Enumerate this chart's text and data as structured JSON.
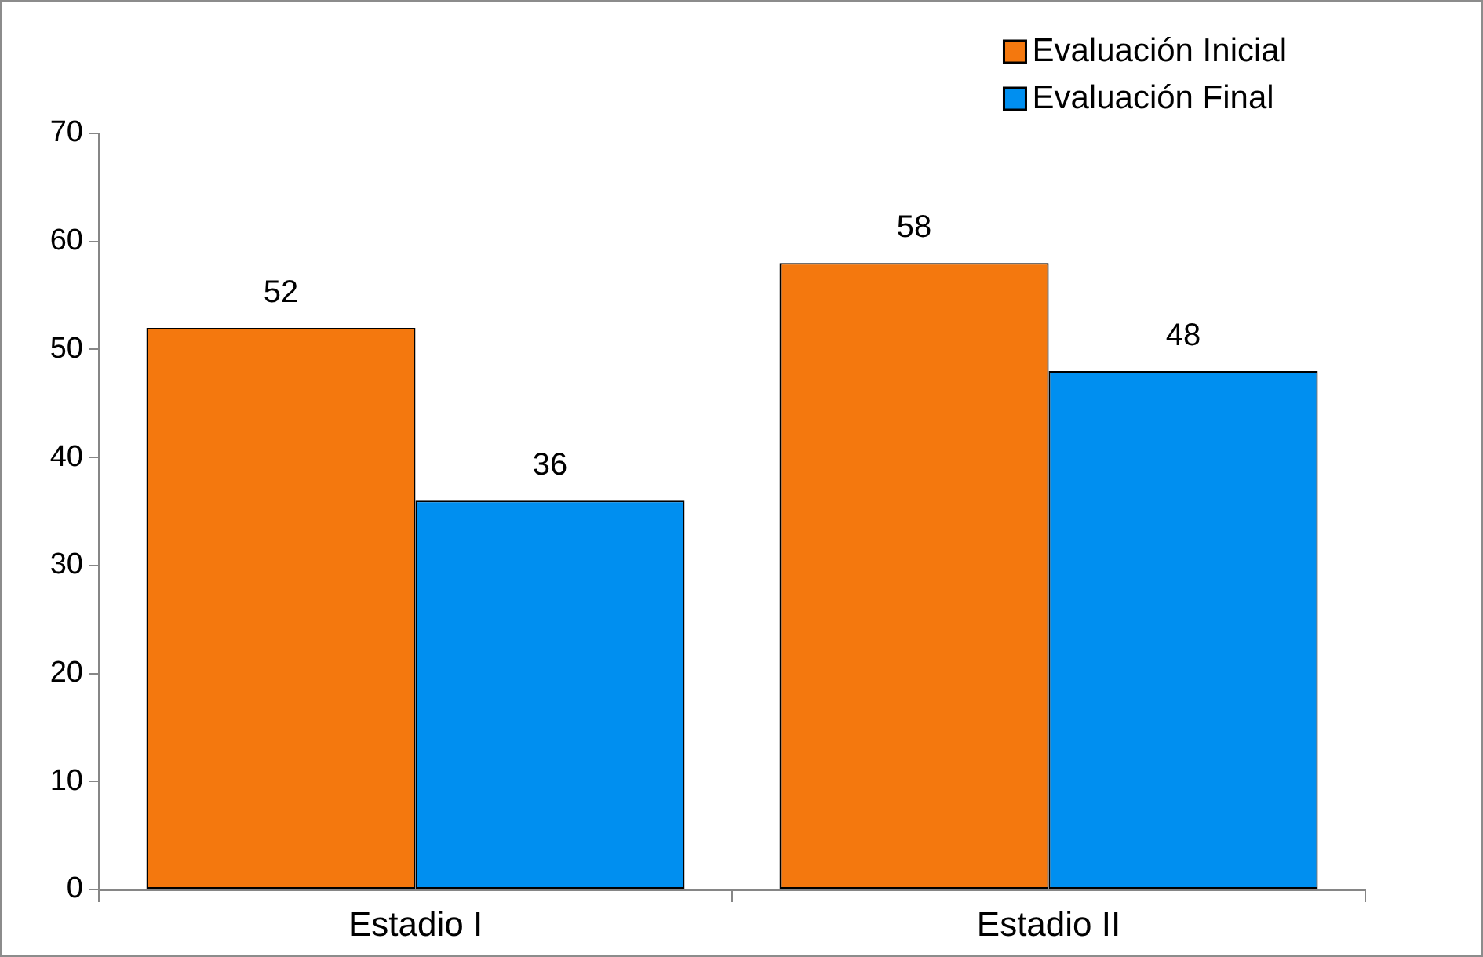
{
  "chart_data": {
    "type": "bar",
    "categories": [
      "Estadio I",
      "Estadio II"
    ],
    "series": [
      {
        "name": "Evaluación Inicial",
        "color": "#f4780e",
        "values": [
          52,
          58
        ]
      },
      {
        "name": "Evaluación Final",
        "color": "#008ff0",
        "values": [
          36,
          48
        ]
      }
    ],
    "ylim": [
      0,
      70
    ],
    "yticks": [
      0,
      10,
      20,
      30,
      40,
      50,
      60,
      70
    ],
    "grid": false,
    "legend": "top right",
    "data_labels": true
  }
}
